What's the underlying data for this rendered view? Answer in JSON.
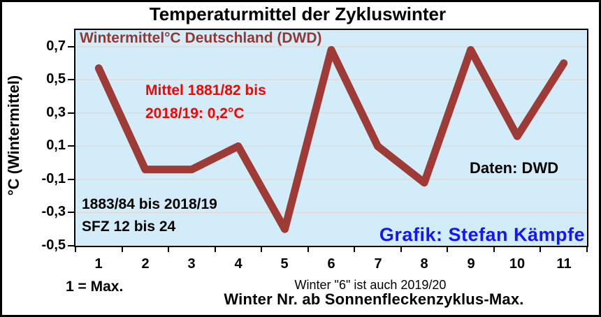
{
  "title": "Temperaturmittel der Zykluswinter",
  "y_axis": {
    "title": "°C (Wintermittel)"
  },
  "annotations": {
    "series_label": "Wintermittel°C Deutschland (DWD)",
    "mean": {
      "line1": "Mittel 1881/82 bis",
      "line2": "2018/19: 0,2°C"
    },
    "period": {
      "line1": "1883/84 bis 2018/19",
      "line2": "SFZ 12 bis 24"
    },
    "data_source": "Daten: DWD",
    "credit": "Grafik: Stefan Kämpfe"
  },
  "footer": {
    "left_note": "1 = Max.",
    "note_line1": "Winter \"6\"  ist auch 2019/20",
    "note_line2": "Winter Nr. ab Sonnenfleckenzyklus-Max."
  },
  "chart_data": {
    "type": "line",
    "title": "Temperaturmittel der Zykluswinter",
    "series_name": "Wintermittel°C Deutschland (DWD)",
    "xlabel": "Winter Nr. ab Sonnenfleckenzyklus-Max.",
    "ylabel": "°C (Wintermittel)",
    "categories": [
      "1",
      "2",
      "3",
      "4",
      "5",
      "6",
      "7",
      "8",
      "9",
      "10",
      "11"
    ],
    "values": [
      0.57,
      -0.04,
      -0.04,
      0.1,
      -0.4,
      0.68,
      0.1,
      -0.12,
      0.68,
      0.16,
      0.6
    ],
    "ylim": [
      -0.5,
      0.8
    ],
    "y_tick_values": [
      0.7,
      0.5,
      0.3,
      0.1,
      -0.1,
      -0.3,
      -0.5
    ],
    "y_tick_labels": [
      "0,7",
      "0,5",
      "0,3",
      "0,1",
      "-0,1",
      "-0,3",
      "-0,5"
    ],
    "grid": true,
    "legend": "none",
    "colors": {
      "line": "#9E3B37",
      "plot_bg": "#D2EDF9",
      "grid": "#E3D9D3",
      "series_label": "#943735",
      "mean_text": "#FF0000",
      "data_source_text": "#000000",
      "credit_text": "#1414FF"
    }
  }
}
